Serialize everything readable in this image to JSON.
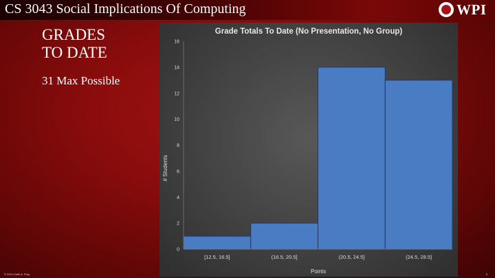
{
  "slide": {
    "course_title": "CS 3043 Social Implications Of Computing",
    "logo_text": "WPI",
    "heading_line1": "GRADES",
    "heading_line2": "TO DATE",
    "subheading": "31 Max Possible",
    "footer_left": "© 2021 Keith A. Pray",
    "page_number": "5"
  },
  "colors": {
    "bar_fill": "#4a7cc4",
    "bar_stroke": "#1f3a66",
    "slide_bg": "#8a0c0c"
  },
  "chart_data": {
    "type": "bar",
    "title": "Grade Totals To Date (No Presentation, No Group)",
    "xlabel": "Points",
    "ylabel": "# Students",
    "categories": [
      "[12.5, 16.5]",
      "(16.5, 20.5]",
      "(20.5, 24.5]",
      "(24.5, 28.5]"
    ],
    "values": [
      1,
      2,
      14,
      13
    ],
    "ylim": [
      0,
      16
    ],
    "yticks": [
      0,
      2,
      4,
      6,
      8,
      10,
      12,
      14,
      16
    ],
    "grid": false,
    "legend": "none"
  }
}
